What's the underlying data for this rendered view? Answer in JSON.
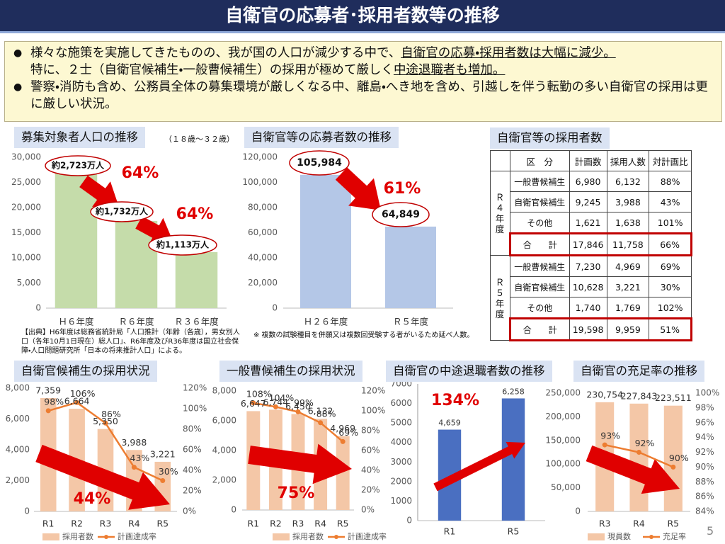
{
  "header": {
    "title": "自衛官の応募者･採用者数等の推移"
  },
  "bullets": [
    [
      "様々な施策を実施してきたものの、我が国の人口が減少する中で、",
      "自衛官の応募・採用者数は大幅に減少。",
      "特に、２士（自衛官候補生・一般曹候補生）の採用が極めて厳しく",
      "中途退職者も増加。"
    ],
    [
      "警察・消防も含め、公務員全体の募集環境が厳しくなる中、離島・へき地を含め、引越しを伴う転勤の多い自衛官の採用は更に厳しい状況。"
    ]
  ],
  "chart_data": [
    {
      "type": "bar",
      "title": "募集対象者人口の推移",
      "subtitle": "（１８歳～３２歳）",
      "categories": [
        "Ｈ６年度",
        "Ｒ６年度",
        "Ｒ３６年度"
      ],
      "values": [
        27230,
        17320,
        11130
      ],
      "value_labels": [
        "約2,723万人",
        "約1,732万人",
        "約1,113万人"
      ],
      "color": "#c5dcaa",
      "ylim": [
        0,
        30000
      ],
      "yticks": [
        0,
        {
          "value": 5000,
          "label": "5,000"
        },
        {
          "value": 10000,
          "label": "10,000"
        },
        {
          "value": 15000,
          "label": "15,000"
        },
        {
          "value": 20000,
          "label": "20,000"
        },
        {
          "value": 25000,
          "label": "25,000"
        },
        {
          "value": 30000,
          "label": "30,000"
        }
      ],
      "annotations": [
        "64%",
        "64%"
      ],
      "note": "【出典】H6年度は総務省統計局「人口推計（年齢（各歳），男女別人口（各年10月1日現在）総人口」、R6年度及びR36年度は国立社会保障・人口問題研究所「日本の将来推計人口」による。"
    },
    {
      "type": "bar",
      "title": "自衛官等の応募者数の推移",
      "categories": [
        "Ｈ２６年度",
        "Ｒ５年度"
      ],
      "values": [
        105984,
        64849
      ],
      "value_labels": [
        "105,984",
        "64,849"
      ],
      "color": "#b4c7e7",
      "ylim": [
        0,
        120000
      ],
      "yticks": [
        0,
        {
          "value": 20000,
          "label": "20,000"
        },
        {
          "value": 40000,
          "label": "40,000"
        },
        {
          "value": 60000,
          "label": "60,000"
        },
        {
          "value": 80000,
          "label": "80,000"
        },
        {
          "value": 100000,
          "label": "100,000"
        },
        {
          "value": 120000,
          "label": "120,000"
        }
      ],
      "annotations": [
        "61%"
      ],
      "note": "※ 複数の試験種目を併願又は複数回受験する者がいるため延べ人数。"
    },
    {
      "type": "combo",
      "title": "自衛官候補生の採用状況",
      "categories": [
        "R1",
        "R2",
        "R3",
        "R4",
        "R5"
      ],
      "series": [
        {
          "name": "採用者数",
          "type": "bar",
          "color": "#f4c7a7",
          "values": [
            7359,
            6664,
            5350,
            3988,
            3221
          ],
          "value_labels": [
            "7,359",
            "6,664",
            "5,350",
            "3,988",
            "3,221"
          ]
        },
        {
          "name": "計画達成率",
          "type": "line",
          "axis": "y2",
          "color": "#ed7d31",
          "values": [
            98,
            106,
            86,
            43,
            30
          ],
          "value_labels": [
            "98%",
            "106%",
            "86%",
            "43%",
            "30%"
          ]
        }
      ],
      "ylim": [
        0,
        8000
      ],
      "yticks": [
        0,
        {
          "value": 2000,
          "label": "2,000"
        },
        {
          "value": 4000,
          "label": "4,000"
        },
        {
          "value": 6000,
          "label": "6,000"
        },
        {
          "value": 8000,
          "label": "8,000"
        }
      ],
      "y2lim": [
        0,
        120
      ],
      "y2ticks": [
        {
          "value": 0,
          "label": "0%"
        },
        {
          "value": 20,
          "label": "20%"
        },
        {
          "value": 40,
          "label": "40%"
        },
        {
          "value": 60,
          "label": "60%"
        },
        {
          "value": 80,
          "label": "80%"
        },
        {
          "value": 100,
          "label": "100%"
        },
        {
          "value": 120,
          "label": "120%"
        }
      ],
      "annotations": [
        "44%"
      ]
    },
    {
      "type": "combo",
      "title": "一般曹候補生の採用状況",
      "categories": [
        "R1",
        "R2",
        "R3",
        "R4",
        "R5"
      ],
      "series": [
        {
          "name": "採用者数",
          "type": "bar",
          "color": "#f4c7a7",
          "values": [
            6647,
            6744,
            6450,
            6132,
            4969
          ],
          "value_labels": [
            "6,647",
            "6,744",
            "6,450",
            "6,132",
            "4,969"
          ]
        },
        {
          "name": "計画達成率",
          "type": "line",
          "axis": "y2",
          "color": "#ed7d31",
          "values": [
            108,
            104,
            99,
            88,
            69
          ],
          "value_labels": [
            "108%",
            "104%",
            "99%",
            "88%",
            "69%"
          ]
        }
      ],
      "ylim": [
        0,
        8000
      ],
      "yticks": [
        0,
        {
          "value": 2000,
          "label": "2,000"
        },
        {
          "value": 4000,
          "label": "4,000"
        },
        {
          "value": 6000,
          "label": "6,000"
        },
        {
          "value": 8000,
          "label": "8,000"
        }
      ],
      "y2lim": [
        0,
        120
      ],
      "y2ticks": [
        {
          "value": 0,
          "label": "0%"
        },
        {
          "value": 20,
          "label": "20%"
        },
        {
          "value": 40,
          "label": "40%"
        },
        {
          "value": 60,
          "label": "60%"
        },
        {
          "value": 80,
          "label": "80%"
        },
        {
          "value": 100,
          "label": "100%"
        },
        {
          "value": 120,
          "label": "120%"
        }
      ],
      "annotations": [
        "75%"
      ]
    },
    {
      "type": "bar",
      "title": "自衛官の中途退職者数の推移",
      "categories": [
        "R1",
        "R5"
      ],
      "values": [
        4659,
        6258
      ],
      "value_labels": [
        "4,659",
        "6,258"
      ],
      "color": "#4a6fc1",
      "ylim": [
        0,
        7000
      ],
      "yticks": [
        0,
        1000,
        2000,
        3000,
        4000,
        5000,
        6000,
        7000
      ],
      "annotations": [
        "134%"
      ]
    },
    {
      "type": "combo",
      "title": "自衛官の充足率の推移",
      "categories": [
        "R3",
        "R4",
        "R5"
      ],
      "series": [
        {
          "name": "現員数",
          "type": "bar",
          "color": "#f4c7a7",
          "values": [
            230754,
            227843,
            223511
          ],
          "value_labels": [
            "230,754",
            "227,843",
            "223,511"
          ]
        },
        {
          "name": "充足率",
          "type": "line",
          "axis": "y2",
          "color": "#ed7d31",
          "values": [
            93,
            92,
            90
          ],
          "value_labels": [
            "93%",
            "92%",
            "90%"
          ]
        }
      ],
      "ylim": [
        0,
        250000
      ],
      "yticks": [
        0,
        {
          "value": 50000,
          "label": "50,000"
        },
        {
          "value": 100000,
          "label": "100,000"
        },
        {
          "value": 150000,
          "label": "150,000"
        },
        {
          "value": 200000,
          "label": "200,000"
        },
        {
          "value": 250000,
          "label": "250,000"
        }
      ],
      "y2lim": [
        84,
        100
      ],
      "y2ticks": [
        {
          "value": 84,
          "label": "84%"
        },
        {
          "value": 86,
          "label": "86%"
        },
        {
          "value": 88,
          "label": "88%"
        },
        {
          "value": 90,
          "label": "90%"
        },
        {
          "value": 92,
          "label": "92%"
        },
        {
          "value": 94,
          "label": "94%"
        },
        {
          "value": 96,
          "label": "96%"
        },
        {
          "value": 98,
          "label": "98%"
        },
        {
          "value": 100,
          "label": "100%"
        }
      ],
      "annotations": []
    }
  ],
  "table": {
    "title": "自衛官等の採用者数",
    "header": [
      "区　分",
      "計画数",
      "採用人数",
      "対計画比"
    ],
    "groups": [
      {
        "label": "Ｒ４年度",
        "rows": [
          [
            "一般曹候補生",
            "6,980",
            "6,132",
            "88%"
          ],
          [
            "自衛官候補生",
            "9,245",
            "3,988",
            "43%"
          ],
          [
            "その他",
            "1,621",
            "1,638",
            "101%"
          ],
          [
            "合　　計",
            "17,846",
            "11,758",
            "66%"
          ]
        ]
      },
      {
        "label": "Ｒ５年度",
        "rows": [
          [
            "一般曹候補生",
            "7,230",
            "4,969",
            "69%"
          ],
          [
            "自衛官候補生",
            "10,628",
            "3,221",
            "30%"
          ],
          [
            "その他",
            "1,740",
            "1,769",
            "102%"
          ],
          [
            "合　　計",
            "19,598",
            "9,959",
            "51%"
          ]
        ]
      }
    ]
  },
  "page_number": "5"
}
